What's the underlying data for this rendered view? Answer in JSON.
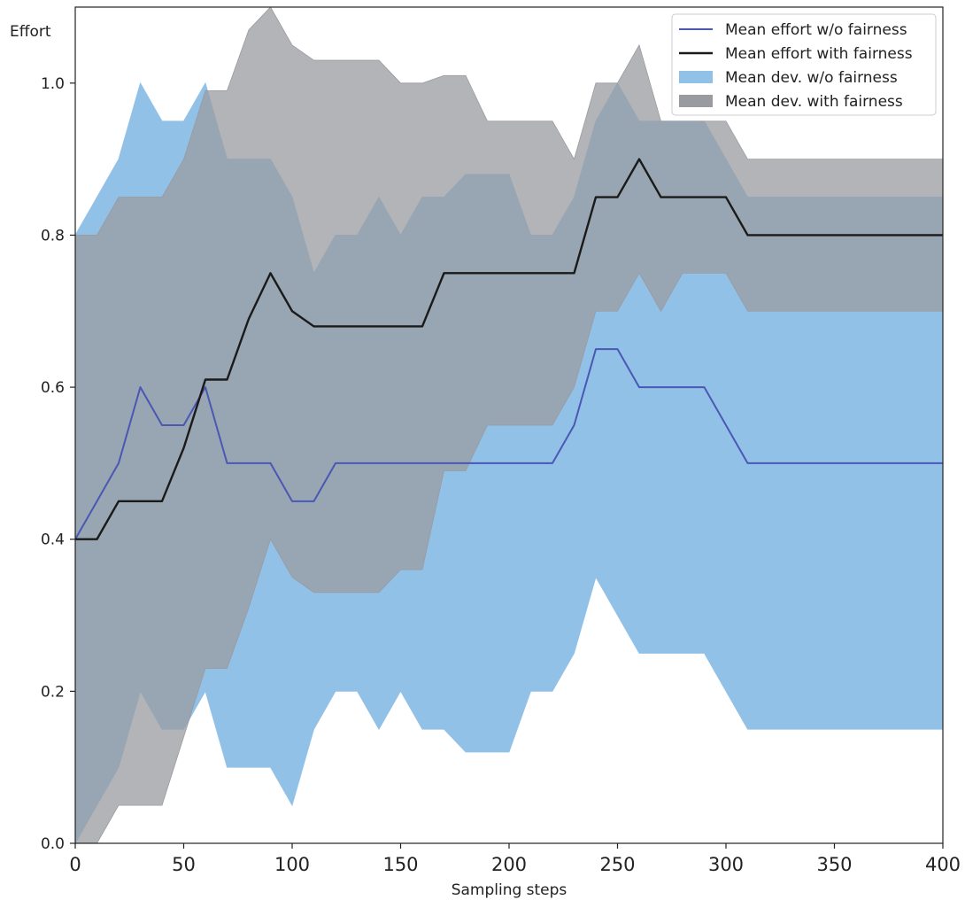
{
  "chart_data": {
    "type": "line",
    "title": "",
    "xlabel": "Sampling steps",
    "ylabel": "Effort",
    "xlim": [
      0,
      400
    ],
    "ylim": [
      0,
      1.1
    ],
    "xticks": [
      0,
      50,
      100,
      150,
      200,
      250,
      300,
      350,
      400
    ],
    "yticks": [
      0.0,
      0.2,
      0.4,
      0.6,
      0.8,
      1.0
    ],
    "xtick_labels": [
      "0",
      "50",
      "100",
      "150",
      "200",
      "250",
      "300",
      "350",
      "400"
    ],
    "ytick_labels": [
      "0.0",
      "0.2",
      "0.4",
      "0.6",
      "0.8",
      "1.0"
    ],
    "grid": false,
    "legend_position": "top-right",
    "x": [
      0,
      10,
      20,
      30,
      40,
      50,
      60,
      70,
      80,
      90,
      100,
      110,
      120,
      130,
      140,
      150,
      160,
      170,
      180,
      190,
      200,
      210,
      220,
      230,
      240,
      250,
      260,
      270,
      280,
      290,
      300,
      310,
      320,
      330,
      340,
      350,
      360,
      370,
      380,
      390,
      400
    ],
    "series": [
      {
        "name": "Mean effort w/o fairness",
        "kind": "line",
        "color": "#4a57b3",
        "values": [
          0.4,
          0.45,
          0.5,
          0.6,
          0.55,
          0.55,
          0.6,
          0.5,
          0.5,
          0.5,
          0.45,
          0.45,
          0.5,
          0.5,
          0.5,
          0.5,
          0.5,
          0.5,
          0.5,
          0.5,
          0.5,
          0.5,
          0.5,
          0.55,
          0.65,
          0.65,
          0.6,
          0.6,
          0.6,
          0.6,
          0.55,
          0.5,
          0.5,
          0.5,
          0.5,
          0.5,
          0.5,
          0.5,
          0.5,
          0.5,
          0.5
        ]
      },
      {
        "name": "Mean effort with fairness",
        "kind": "line",
        "color": "#1a1a1a",
        "values": [
          0.4,
          0.4,
          0.45,
          0.45,
          0.45,
          0.52,
          0.61,
          0.61,
          0.69,
          0.75,
          0.7,
          0.68,
          0.68,
          0.68,
          0.68,
          0.68,
          0.68,
          0.75,
          0.75,
          0.75,
          0.75,
          0.75,
          0.75,
          0.75,
          0.85,
          0.85,
          0.9,
          0.85,
          0.85,
          0.85,
          0.85,
          0.8,
          0.8,
          0.8,
          0.8,
          0.8,
          0.8,
          0.8,
          0.8,
          0.8,
          0.8
        ]
      },
      {
        "name": "Mean dev. w/o fairness",
        "kind": "band",
        "color": "#92c1e8",
        "upper": [
          0.8,
          0.85,
          0.9,
          1.0,
          0.95,
          0.95,
          1.0,
          0.9,
          0.9,
          0.9,
          0.85,
          0.75,
          0.8,
          0.8,
          0.85,
          0.8,
          0.85,
          0.85,
          0.88,
          0.88,
          0.88,
          0.8,
          0.8,
          0.85,
          0.95,
          1.0,
          0.95,
          0.95,
          0.95,
          0.95,
          0.9,
          0.85,
          0.85,
          0.85,
          0.85,
          0.85,
          0.85,
          0.85,
          0.85,
          0.85,
          0.85
        ],
        "lower": [
          0.0,
          0.05,
          0.1,
          0.2,
          0.15,
          0.15,
          0.2,
          0.1,
          0.1,
          0.1,
          0.05,
          0.15,
          0.2,
          0.2,
          0.15,
          0.2,
          0.15,
          0.15,
          0.12,
          0.12,
          0.12,
          0.2,
          0.2,
          0.25,
          0.35,
          0.3,
          0.25,
          0.25,
          0.25,
          0.25,
          0.2,
          0.15,
          0.15,
          0.15,
          0.15,
          0.15,
          0.15,
          0.15,
          0.15,
          0.15,
          0.15
        ]
      },
      {
        "name": "Mean dev. with fairness",
        "kind": "band",
        "color": "#9a9ba0",
        "upper": [
          0.8,
          0.8,
          0.85,
          0.85,
          0.85,
          0.9,
          0.99,
          0.99,
          1.07,
          1.1,
          1.05,
          1.03,
          1.03,
          1.03,
          1.03,
          1.0,
          1.0,
          1.01,
          1.01,
          0.95,
          0.95,
          0.95,
          0.95,
          0.9,
          1.0,
          1.0,
          1.05,
          0.95,
          0.95,
          0.95,
          0.95,
          0.9,
          0.9,
          0.9,
          0.9,
          0.9,
          0.9,
          0.9,
          0.9,
          0.9,
          0.9
        ],
        "lower": [
          0.0,
          0.0,
          0.05,
          0.05,
          0.05,
          0.14,
          0.23,
          0.23,
          0.31,
          0.4,
          0.35,
          0.33,
          0.33,
          0.33,
          0.33,
          0.36,
          0.36,
          0.49,
          0.49,
          0.55,
          0.55,
          0.55,
          0.55,
          0.6,
          0.7,
          0.7,
          0.75,
          0.7,
          0.75,
          0.75,
          0.75,
          0.7,
          0.7,
          0.7,
          0.7,
          0.7,
          0.7,
          0.7,
          0.7,
          0.7,
          0.7
        ]
      }
    ]
  }
}
